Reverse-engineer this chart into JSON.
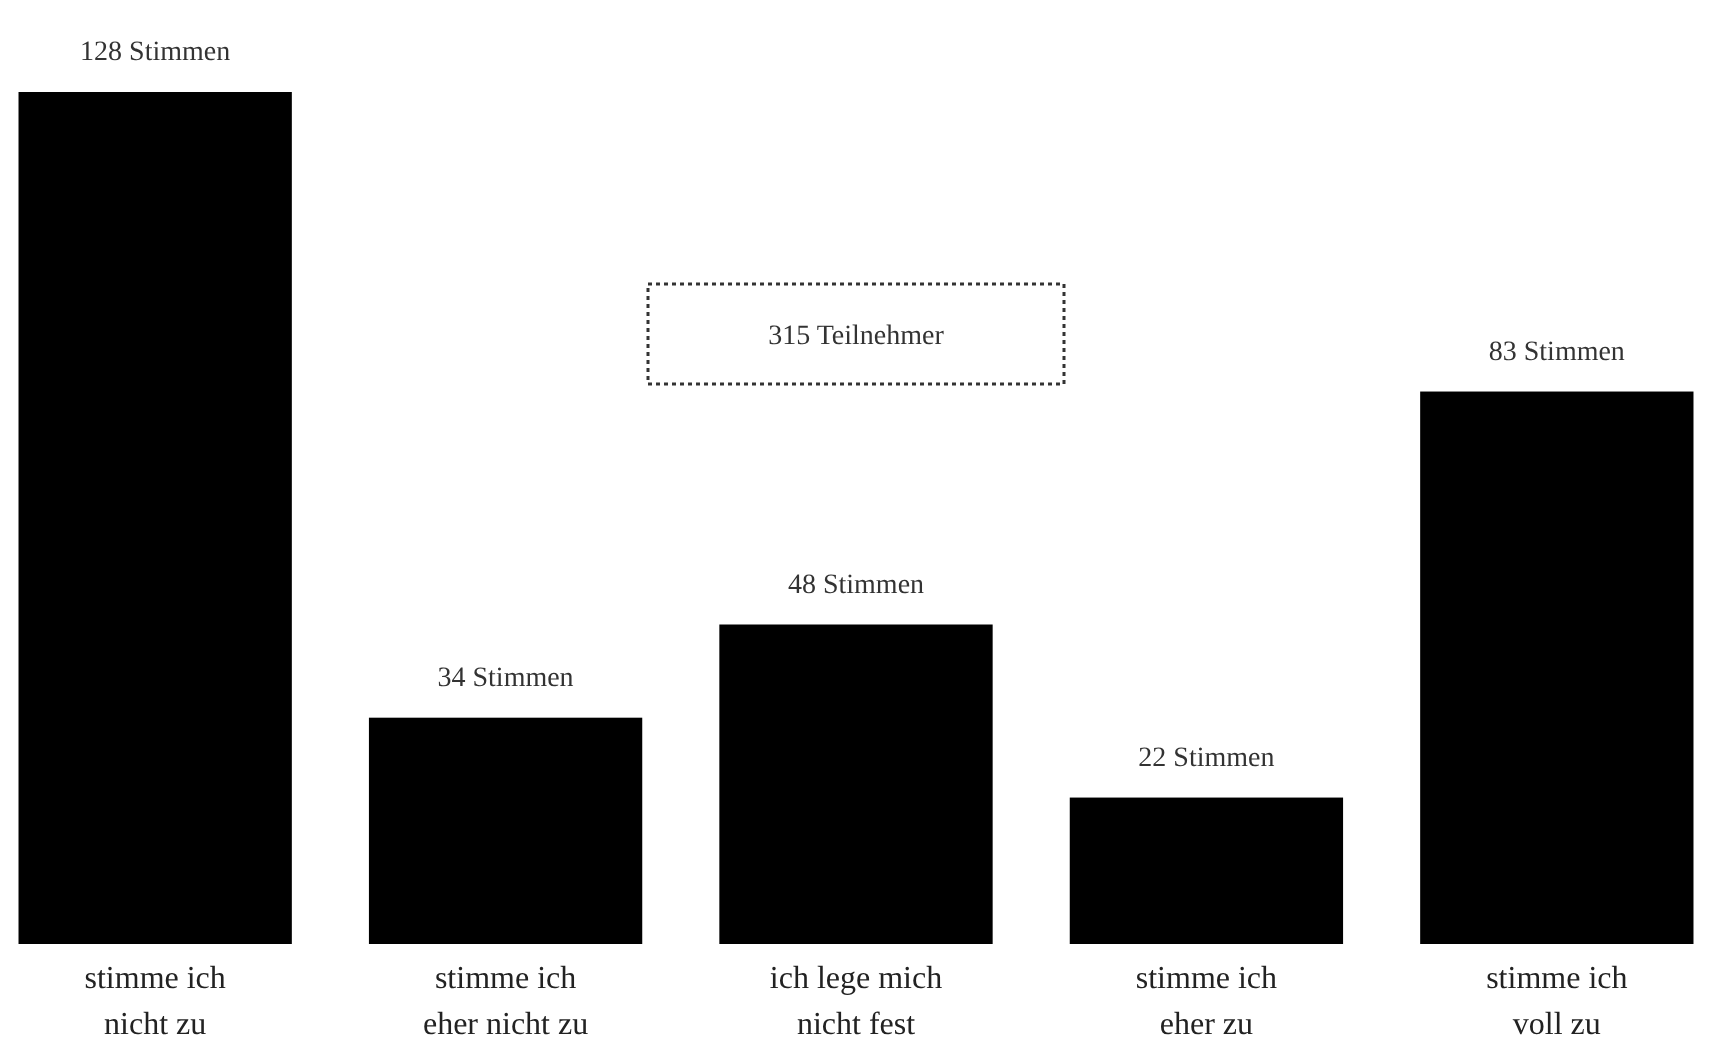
{
  "chart_data": {
    "type": "bar",
    "categories": [
      "stimme ich nicht zu",
      "stimme ich eher nicht zu",
      "ich lege mich nicht fest",
      "stimme ich eher zu",
      "stimme ich voll zu"
    ],
    "values": [
      128,
      34,
      48,
      22,
      83
    ],
    "color": "#000000",
    "value_labels": [
      "128 Stimmen",
      "34 Stimmen",
      "48 Stimmen",
      "22 Stimmen",
      "83 Stimmen"
    ],
    "annotations": [
      "315 Teilnehmer"
    ]
  }
}
